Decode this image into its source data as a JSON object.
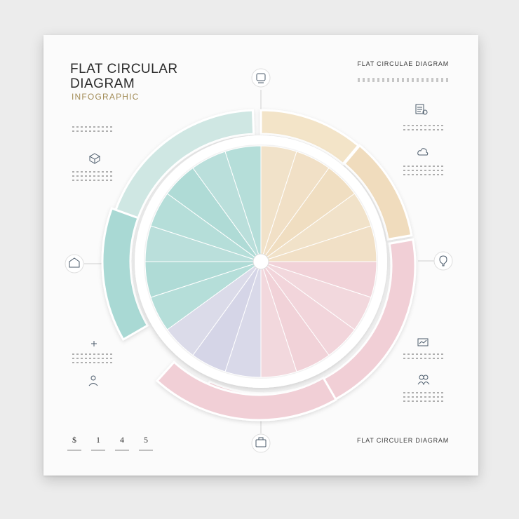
{
  "header": {
    "title_line1": "FLAT CIRCULAR",
    "title_line2": "DIAGRAM",
    "subtitle": "INFOGRAPHIC",
    "top_right_label": "FLAT CIRCULAE DIAGRAM",
    "bottom_right_label": "FLAT CIRCULER DIAGRAM"
  },
  "stats": [
    "$",
    "1",
    "4",
    "5"
  ],
  "icons": [
    "document-icon",
    "clock-icon",
    "cube-icon",
    "home-icon",
    "people-icon",
    "chart-icon",
    "briefcase-icon",
    "lightbulb-icon",
    "person-icon"
  ],
  "colors": {
    "mint": "#cfe7e3",
    "teal": "#a9d9d4",
    "cream": "#f3e4c8",
    "sand": "#f0dcbd",
    "pink": "#f1cfd6",
    "lavender": "#d3d3e6"
  }
}
